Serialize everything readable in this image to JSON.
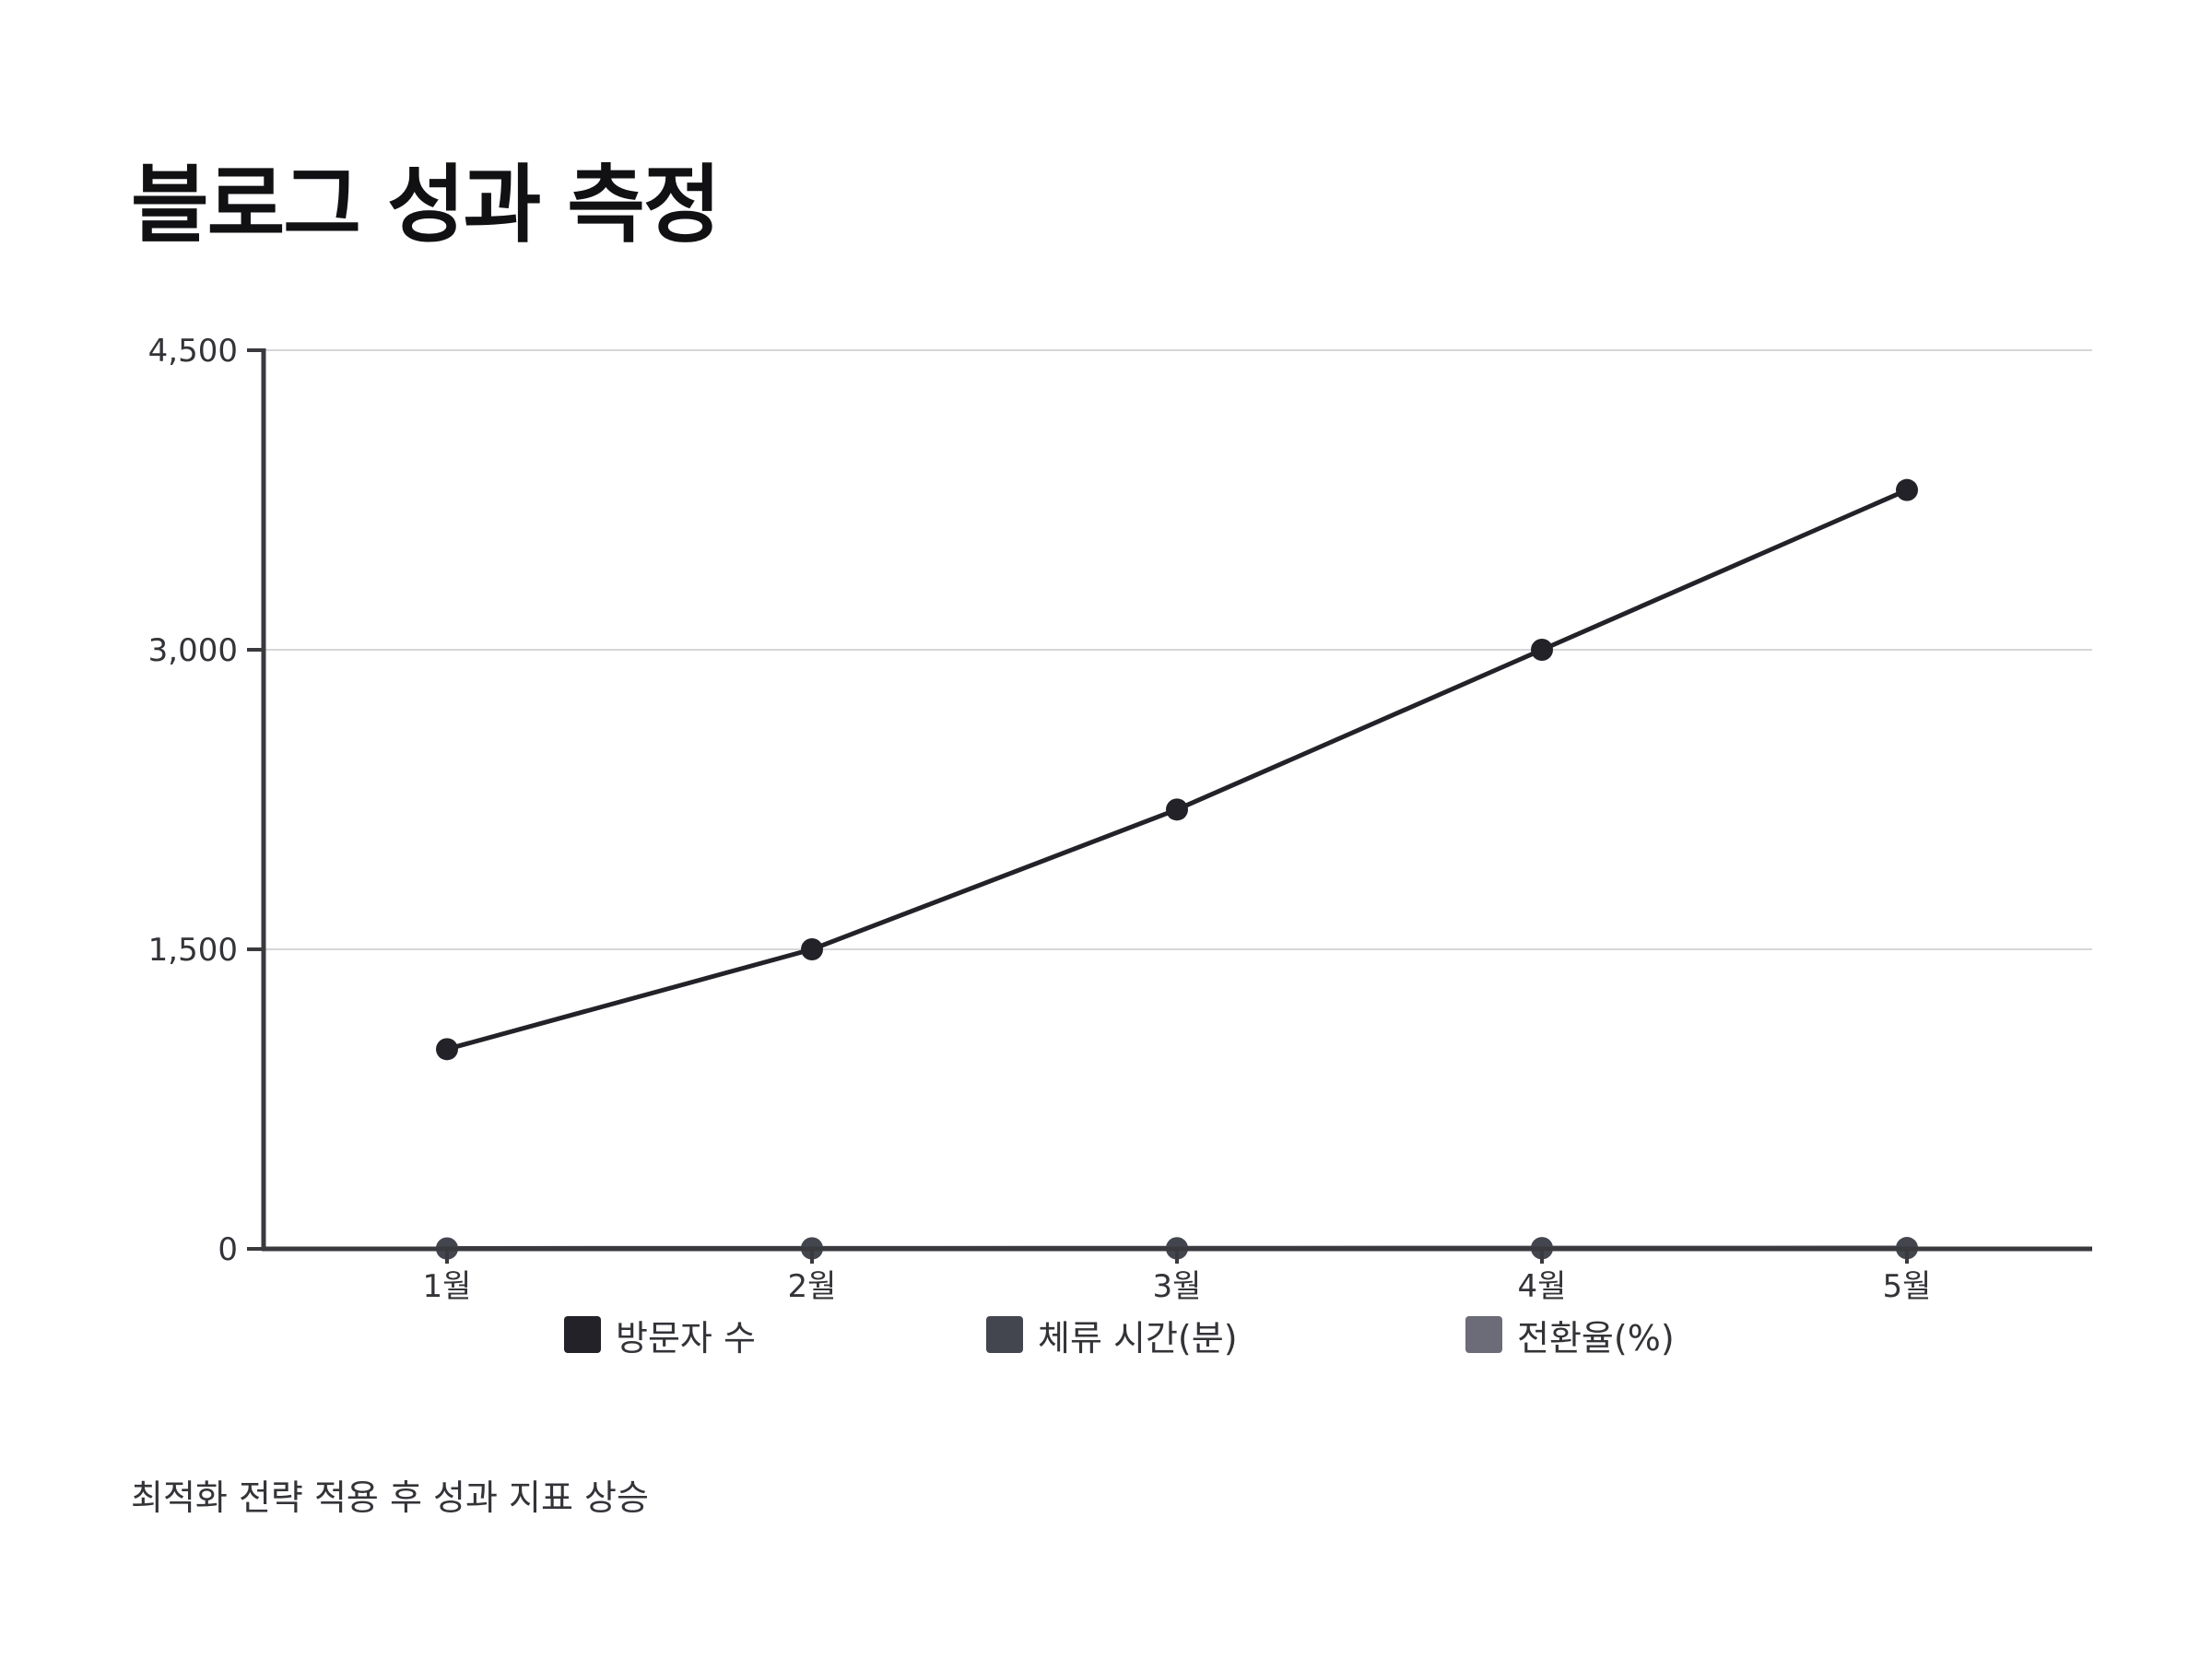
{
  "title": "블로그 성과 측정",
  "caption": "최적화 전략 적용 후 성과 지표 상승",
  "colors": {
    "axis": "#3a3a3e",
    "grid": "#d6d6d8",
    "series": [
      "#222228",
      "#44464f",
      "#6b6c78"
    ]
  },
  "chart_data": {
    "type": "line",
    "title": "블로그 성과 측정",
    "categories": [
      "1월",
      "2월",
      "3월",
      "4월",
      "5월"
    ],
    "y_ticks": [
      "0",
      "1,500",
      "3,000",
      "4,500"
    ],
    "ylim": [
      0,
      4500
    ],
    "grid": true,
    "legend_position": "bottom",
    "series": [
      {
        "name": "방문자 수",
        "values": [
          1000,
          1500,
          2200,
          3000,
          3800
        ]
      },
      {
        "name": "체류 시간(분)",
        "values": [
          2.5,
          3.0,
          3.5,
          4.0,
          4.5
        ]
      },
      {
        "name": "전환율(%)",
        "values": [
          1.2,
          1.5,
          1.8,
          2.2,
          2.6
        ]
      }
    ]
  }
}
